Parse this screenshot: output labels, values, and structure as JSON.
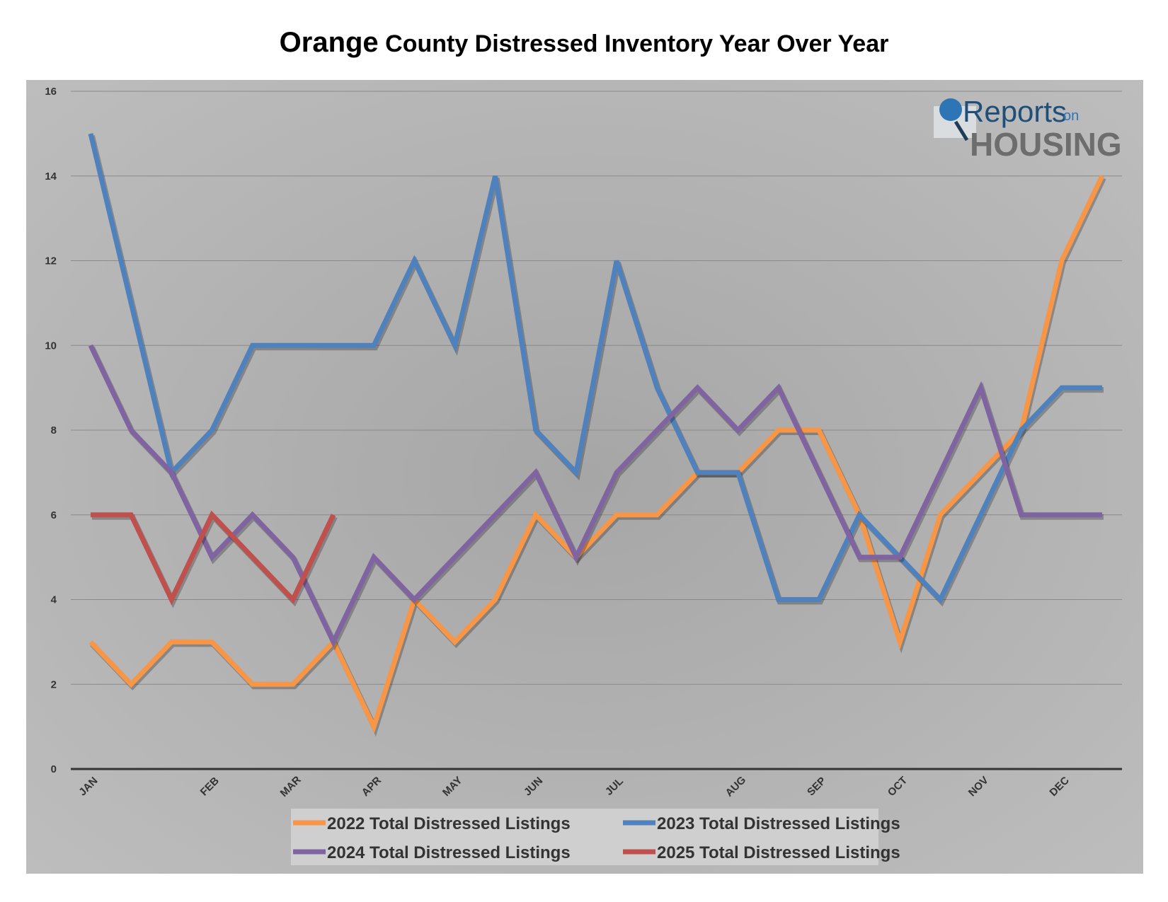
{
  "chart_data": {
    "type": "line",
    "title_first": "Orange",
    "title_rest": "County Distressed Inventory Year Over Year",
    "xlabel": "",
    "ylabel": "",
    "ylim": [
      0,
      16
    ],
    "yticks": [
      0,
      2,
      4,
      6,
      8,
      10,
      12,
      14,
      16
    ],
    "grid": true,
    "legend_placement": "bottom",
    "n_points": 26,
    "month_labels": [
      {
        "label": "JAN",
        "index": 0
      },
      {
        "label": "FEB",
        "index": 3
      },
      {
        "label": "MAR",
        "index": 5
      },
      {
        "label": "APR",
        "index": 7
      },
      {
        "label": "MAY",
        "index": 9
      },
      {
        "label": "JUN",
        "index": 11
      },
      {
        "label": "JUL",
        "index": 13
      },
      {
        "label": "AUG",
        "index": 16
      },
      {
        "label": "SEP",
        "index": 18
      },
      {
        "label": "OCT",
        "index": 20
      },
      {
        "label": "NOV",
        "index": 22
      },
      {
        "label": "DEC",
        "index": 24
      }
    ],
    "series": [
      {
        "name": "2022 Total Distressed Listings",
        "color": "#f79646",
        "values": [
          3,
          2,
          3,
          3,
          2,
          2,
          3,
          1,
          4,
          3,
          4,
          6,
          5,
          6,
          6,
          7,
          7,
          8,
          8,
          6,
          3,
          6,
          7,
          8,
          12,
          14
        ]
      },
      {
        "name": "2023 Total Distressed Listings",
        "color": "#4f81bd",
        "values": [
          15,
          11,
          7,
          8,
          10,
          10,
          10,
          10,
          12,
          10,
          14,
          8,
          7,
          12,
          9,
          7,
          7,
          4,
          4,
          6,
          5,
          4,
          6,
          8,
          9,
          9
        ]
      },
      {
        "name": "2024 Total Distressed Listings",
        "color": "#8064a2",
        "values": [
          10,
          8,
          7,
          5,
          6,
          5,
          3,
          5,
          4,
          5,
          6,
          7,
          5,
          7,
          8,
          9,
          8,
          9,
          7,
          5,
          5,
          7,
          9,
          6,
          6,
          6
        ]
      },
      {
        "name": "2025 Total Distressed Listings",
        "color": "#c0504d",
        "values": [
          6,
          6,
          4,
          6,
          5,
          4,
          6
        ]
      }
    ]
  },
  "logo": {
    "text1": "Reports",
    "text2": "on",
    "text3": "HOUSING"
  }
}
